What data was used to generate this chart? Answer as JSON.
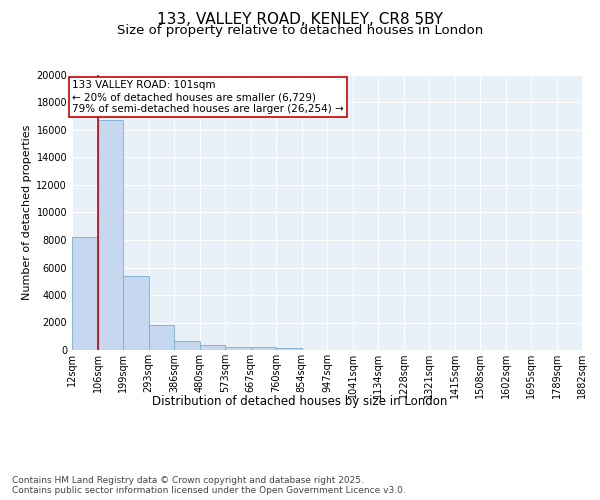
{
  "title": "133, VALLEY ROAD, KENLEY, CR8 5BY",
  "subtitle": "Size of property relative to detached houses in London",
  "xlabel": "Distribution of detached houses by size in London",
  "ylabel": "Number of detached properties",
  "bar_color": "#c5d8f0",
  "bar_edge_color": "#7aadd4",
  "background_color": "#e8f0f8",
  "grid_color": "#ffffff",
  "annotation_text": "133 VALLEY ROAD: 101sqm\n← 20% of detached houses are smaller (6,729)\n79% of semi-detached houses are larger (26,254) →",
  "annotation_box_color": "#cc0000",
  "vline_color": "#cc0000",
  "bin_labels": [
    "12sqm",
    "106sqm",
    "199sqm",
    "293sqm",
    "386sqm",
    "480sqm",
    "573sqm",
    "667sqm",
    "760sqm",
    "854sqm",
    "947sqm",
    "1041sqm",
    "1134sqm",
    "1228sqm",
    "1321sqm",
    "1415sqm",
    "1508sqm",
    "1602sqm",
    "1695sqm",
    "1789sqm",
    "1882sqm"
  ],
  "bar_heights": [
    8200,
    16700,
    5350,
    1850,
    650,
    350,
    250,
    200,
    130,
    0,
    0,
    0,
    0,
    0,
    0,
    0,
    0,
    0,
    0,
    0
  ],
  "ylim": [
    0,
    20000
  ],
  "yticks": [
    0,
    2000,
    4000,
    6000,
    8000,
    10000,
    12000,
    14000,
    16000,
    18000,
    20000
  ],
  "footer_text": "Contains HM Land Registry data © Crown copyright and database right 2025.\nContains public sector information licensed under the Open Government Licence v3.0.",
  "title_fontsize": 11,
  "subtitle_fontsize": 9.5,
  "xlabel_fontsize": 8.5,
  "ylabel_fontsize": 8,
  "tick_fontsize": 7,
  "annotation_fontsize": 7.5,
  "footer_fontsize": 6.5,
  "n_bars": 20,
  "n_ticks": 21,
  "vline_bar_index": 1
}
